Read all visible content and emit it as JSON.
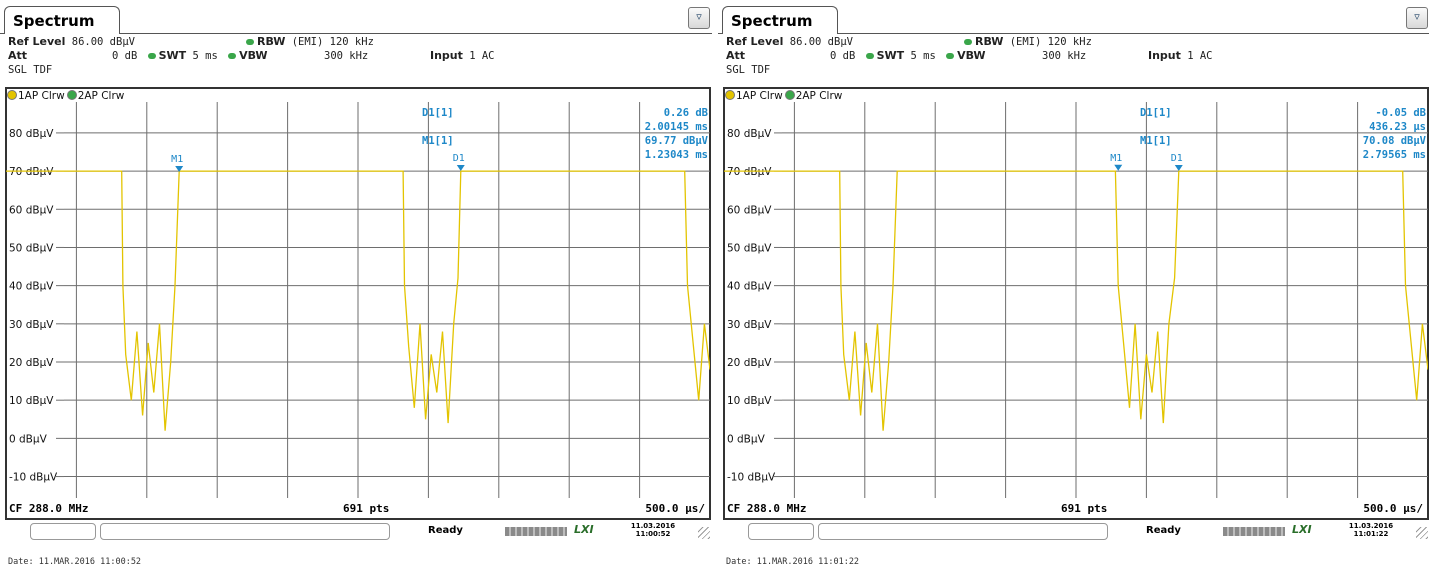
{
  "panels": [
    {
      "tab": "Spectrum",
      "ref_level_label": "Ref Level",
      "ref_level": "86.00 dBµV",
      "att_label": "Att",
      "att": "0 dB",
      "rbw_label": "RBW",
      "rbw": "(EMI) 120 kHz",
      "swt_label": "SWT",
      "swt": "5 ms",
      "vbw_label": "VBW",
      "vbw": "300 kHz",
      "input_label": "Input",
      "input": "1 AC",
      "mode": "SGL TDF",
      "trace1": "1AP Clrw",
      "trace2": "2AP Clrw",
      "y_ticks": [
        "80 dBµV",
        "70 dBµV",
        "60 dBµV",
        "50 dBµV",
        "40 dBµV",
        "30 dBµV",
        "20 dBµV",
        "10 dBµV",
        "0 dBµV",
        "-10 dBµV"
      ],
      "markers": [
        {
          "label": "D1[1]",
          "value1": "0.26 dB",
          "value2": "2.00145 ms"
        },
        {
          "label": "M1[1]",
          "value1": "69.77 dBµV",
          "value2": "1.23043 ms"
        }
      ],
      "marker_flags": {
        "m1": "M1",
        "d1": "D1"
      },
      "center_freq": "CF 288.0 MHz",
      "points": "691 pts",
      "scale": "500.0 µs/",
      "status": "Ready",
      "lxi": "LXI",
      "stamp_date": "11.03.2016",
      "stamp_time": "11:00:52",
      "date_line": "Date: 11.MAR.2016  11:00:52"
    },
    {
      "tab": "Spectrum",
      "ref_level_label": "Ref Level",
      "ref_level": "86.00 dBµV",
      "att_label": "Att",
      "att": "0 dB",
      "rbw_label": "RBW",
      "rbw": "(EMI) 120 kHz",
      "swt_label": "SWT",
      "swt": "5 ms",
      "vbw_label": "VBW",
      "vbw": "300 kHz",
      "input_label": "Input",
      "input": "1 AC",
      "mode": "SGL TDF",
      "trace1": "1AP Clrw",
      "trace2": "2AP Clrw",
      "y_ticks": [
        "80 dBµV",
        "70 dBµV",
        "60 dBµV",
        "50 dBµV",
        "40 dBµV",
        "30 dBµV",
        "20 dBµV",
        "10 dBµV",
        "0 dBµV",
        "-10 dBµV"
      ],
      "markers": [
        {
          "label": "D1[1]",
          "value1": "-0.05 dB",
          "value2": "436.23 µs"
        },
        {
          "label": "M1[1]",
          "value1": "70.08 dBµV",
          "value2": "2.79565 ms"
        }
      ],
      "marker_flags": {
        "m1": "M1",
        "d1": "D1"
      },
      "center_freq": "CF 288.0 MHz",
      "points": "691 pts",
      "scale": "500.0 µs/",
      "status": "Ready",
      "lxi": "LXI",
      "stamp_date": "11.03.2016",
      "stamp_time": "11:01:22",
      "date_line": "Date: 11.MAR.2016  11:01:22"
    }
  ],
  "colors": {
    "trace": "#e3c400",
    "marker": "#1e88c8",
    "grid": "#6e6e6e"
  },
  "chart_data": [
    {
      "type": "line",
      "ylim": [
        -13,
        86
      ],
      "y_unit": "dBµV",
      "xlim": [
        0,
        5
      ],
      "x_unit": "ms",
      "grid": true,
      "series": [
        {
          "x": [
            0,
            0.822,
            0.83,
            0.85,
            0.89,
            0.93,
            0.97,
            1.01,
            1.05,
            1.09,
            1.13,
            1.17,
            1.2,
            1.23,
            1.26,
            1.3,
            2.82,
            2.83,
            2.86,
            2.9,
            2.94,
            2.98,
            3.02,
            3.06,
            3.1,
            3.14,
            3.18,
            3.21,
            3.23,
            3.27,
            4.82,
            4.84,
            4.88,
            4.92,
            4.96,
            5.0
          ],
          "y": [
            70,
            70,
            40,
            22,
            10,
            28,
            6,
            25,
            12,
            30,
            2,
            20,
            40,
            70,
            70,
            70,
            70,
            40,
            24,
            8,
            30,
            5,
            22,
            12,
            28,
            4,
            30,
            42,
            70,
            70,
            70,
            40,
            25,
            10,
            30,
            18
          ]
        }
      ],
      "markers": [
        {
          "name": "M1",
          "x": 1.23,
          "y": 69.77
        },
        {
          "name": "D1",
          "x": 3.23,
          "y": 70.03
        }
      ]
    },
    {
      "type": "line",
      "ylim": [
        -13,
        86
      ],
      "y_unit": "dBµV",
      "xlim": [
        0,
        5
      ],
      "x_unit": "ms",
      "grid": true,
      "series": [
        {
          "x": [
            0,
            0.822,
            0.83,
            0.85,
            0.89,
            0.93,
            0.97,
            1.01,
            1.05,
            1.09,
            1.13,
            1.17,
            1.2,
            1.23,
            1.26,
            1.3,
            2.78,
            2.8,
            2.84,
            2.88,
            2.92,
            2.96,
            3.0,
            3.04,
            3.08,
            3.12,
            3.16,
            3.2,
            3.23,
            3.27,
            4.82,
            4.84,
            4.88,
            4.92,
            4.96,
            5.0
          ],
          "y": [
            70,
            70,
            40,
            22,
            10,
            28,
            6,
            25,
            12,
            30,
            2,
            20,
            40,
            70,
            70,
            70,
            70,
            40,
            24,
            8,
            30,
            5,
            22,
            12,
            28,
            4,
            30,
            42,
            70,
            70,
            70,
            40,
            25,
            10,
            30,
            18
          ]
        }
      ],
      "markers": [
        {
          "name": "M1",
          "x": 2.8,
          "y": 70.08
        },
        {
          "name": "D1",
          "x": 3.23,
          "y": 70.03
        }
      ]
    }
  ]
}
